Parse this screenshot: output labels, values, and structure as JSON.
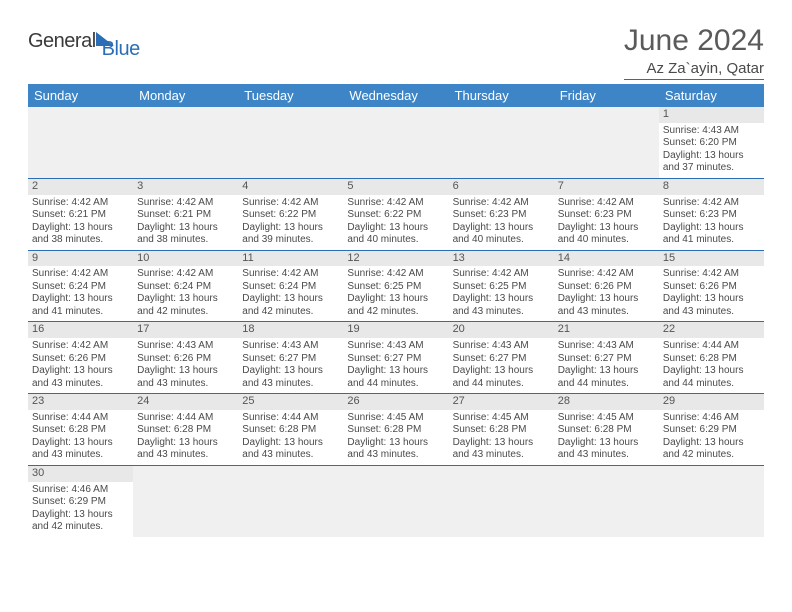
{
  "logo": {
    "text1": "General",
    "text2": "Blue"
  },
  "title": "June 2024",
  "location": "Az Za`ayin, Qatar",
  "columns": [
    "Sunday",
    "Monday",
    "Tuesday",
    "Wednesday",
    "Thursday",
    "Friday",
    "Saturday"
  ],
  "colors": {
    "header_bg": "#3d85c6",
    "header_text": "#ffffff",
    "rule": "#2c6eb5",
    "daynum_bg": "#e8e8e8",
    "text": "#4a4a4a"
  },
  "weeks": [
    [
      null,
      null,
      null,
      null,
      null,
      null,
      {
        "n": "1",
        "sunrise": "Sunrise: 4:43 AM",
        "sunset": "Sunset: 6:20 PM",
        "daylight": "Daylight: 13 hours and 37 minutes."
      }
    ],
    [
      {
        "n": "2",
        "sunrise": "Sunrise: 4:42 AM",
        "sunset": "Sunset: 6:21 PM",
        "daylight": "Daylight: 13 hours and 38 minutes."
      },
      {
        "n": "3",
        "sunrise": "Sunrise: 4:42 AM",
        "sunset": "Sunset: 6:21 PM",
        "daylight": "Daylight: 13 hours and 38 minutes."
      },
      {
        "n": "4",
        "sunrise": "Sunrise: 4:42 AM",
        "sunset": "Sunset: 6:22 PM",
        "daylight": "Daylight: 13 hours and 39 minutes."
      },
      {
        "n": "5",
        "sunrise": "Sunrise: 4:42 AM",
        "sunset": "Sunset: 6:22 PM",
        "daylight": "Daylight: 13 hours and 40 minutes."
      },
      {
        "n": "6",
        "sunrise": "Sunrise: 4:42 AM",
        "sunset": "Sunset: 6:23 PM",
        "daylight": "Daylight: 13 hours and 40 minutes."
      },
      {
        "n": "7",
        "sunrise": "Sunrise: 4:42 AM",
        "sunset": "Sunset: 6:23 PM",
        "daylight": "Daylight: 13 hours and 40 minutes."
      },
      {
        "n": "8",
        "sunrise": "Sunrise: 4:42 AM",
        "sunset": "Sunset: 6:23 PM",
        "daylight": "Daylight: 13 hours and 41 minutes."
      }
    ],
    [
      {
        "n": "9",
        "sunrise": "Sunrise: 4:42 AM",
        "sunset": "Sunset: 6:24 PM",
        "daylight": "Daylight: 13 hours and 41 minutes."
      },
      {
        "n": "10",
        "sunrise": "Sunrise: 4:42 AM",
        "sunset": "Sunset: 6:24 PM",
        "daylight": "Daylight: 13 hours and 42 minutes."
      },
      {
        "n": "11",
        "sunrise": "Sunrise: 4:42 AM",
        "sunset": "Sunset: 6:24 PM",
        "daylight": "Daylight: 13 hours and 42 minutes."
      },
      {
        "n": "12",
        "sunrise": "Sunrise: 4:42 AM",
        "sunset": "Sunset: 6:25 PM",
        "daylight": "Daylight: 13 hours and 42 minutes."
      },
      {
        "n": "13",
        "sunrise": "Sunrise: 4:42 AM",
        "sunset": "Sunset: 6:25 PM",
        "daylight": "Daylight: 13 hours and 43 minutes."
      },
      {
        "n": "14",
        "sunrise": "Sunrise: 4:42 AM",
        "sunset": "Sunset: 6:26 PM",
        "daylight": "Daylight: 13 hours and 43 minutes."
      },
      {
        "n": "15",
        "sunrise": "Sunrise: 4:42 AM",
        "sunset": "Sunset: 6:26 PM",
        "daylight": "Daylight: 13 hours and 43 minutes."
      }
    ],
    [
      {
        "n": "16",
        "sunrise": "Sunrise: 4:42 AM",
        "sunset": "Sunset: 6:26 PM",
        "daylight": "Daylight: 13 hours and 43 minutes."
      },
      {
        "n": "17",
        "sunrise": "Sunrise: 4:43 AM",
        "sunset": "Sunset: 6:26 PM",
        "daylight": "Daylight: 13 hours and 43 minutes."
      },
      {
        "n": "18",
        "sunrise": "Sunrise: 4:43 AM",
        "sunset": "Sunset: 6:27 PM",
        "daylight": "Daylight: 13 hours and 43 minutes."
      },
      {
        "n": "19",
        "sunrise": "Sunrise: 4:43 AM",
        "sunset": "Sunset: 6:27 PM",
        "daylight": "Daylight: 13 hours and 44 minutes."
      },
      {
        "n": "20",
        "sunrise": "Sunrise: 4:43 AM",
        "sunset": "Sunset: 6:27 PM",
        "daylight": "Daylight: 13 hours and 44 minutes."
      },
      {
        "n": "21",
        "sunrise": "Sunrise: 4:43 AM",
        "sunset": "Sunset: 6:27 PM",
        "daylight": "Daylight: 13 hours and 44 minutes."
      },
      {
        "n": "22",
        "sunrise": "Sunrise: 4:44 AM",
        "sunset": "Sunset: 6:28 PM",
        "daylight": "Daylight: 13 hours and 44 minutes."
      }
    ],
    [
      {
        "n": "23",
        "sunrise": "Sunrise: 4:44 AM",
        "sunset": "Sunset: 6:28 PM",
        "daylight": "Daylight: 13 hours and 43 minutes."
      },
      {
        "n": "24",
        "sunrise": "Sunrise: 4:44 AM",
        "sunset": "Sunset: 6:28 PM",
        "daylight": "Daylight: 13 hours and 43 minutes."
      },
      {
        "n": "25",
        "sunrise": "Sunrise: 4:44 AM",
        "sunset": "Sunset: 6:28 PM",
        "daylight": "Daylight: 13 hours and 43 minutes."
      },
      {
        "n": "26",
        "sunrise": "Sunrise: 4:45 AM",
        "sunset": "Sunset: 6:28 PM",
        "daylight": "Daylight: 13 hours and 43 minutes."
      },
      {
        "n": "27",
        "sunrise": "Sunrise: 4:45 AM",
        "sunset": "Sunset: 6:28 PM",
        "daylight": "Daylight: 13 hours and 43 minutes."
      },
      {
        "n": "28",
        "sunrise": "Sunrise: 4:45 AM",
        "sunset": "Sunset: 6:28 PM",
        "daylight": "Daylight: 13 hours and 43 minutes."
      },
      {
        "n": "29",
        "sunrise": "Sunrise: 4:46 AM",
        "sunset": "Sunset: 6:29 PM",
        "daylight": "Daylight: 13 hours and 42 minutes."
      }
    ],
    [
      {
        "n": "30",
        "sunrise": "Sunrise: 4:46 AM",
        "sunset": "Sunset: 6:29 PM",
        "daylight": "Daylight: 13 hours and 42 minutes."
      },
      null,
      null,
      null,
      null,
      null,
      null
    ]
  ]
}
